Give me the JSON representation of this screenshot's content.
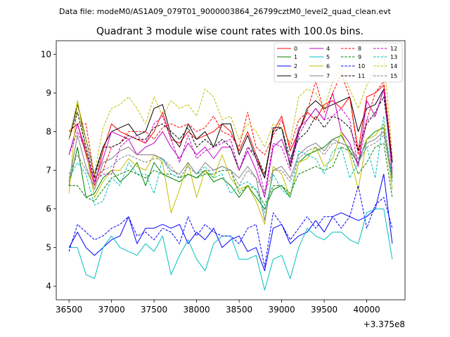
{
  "chart_data": {
    "type": "line",
    "suptitle": "Data file: modeM0/AS1A09_079T01_9000003864_26799cztM0_level2_quad_clean.evt",
    "title": "Quadrant 3 module wise count rates with 100.0s bins.",
    "xlabel": "",
    "ylabel": "",
    "x_offset_label": "+3.375e8",
    "xlim": [
      36350,
      40450
    ],
    "ylim": [
      3.65,
      10.35
    ],
    "x_ticks": [
      36500,
      37000,
      37500,
      38000,
      38500,
      39000,
      39500,
      40000
    ],
    "x_tick_labels": [
      "36500",
      "37000",
      "37500",
      "38000",
      "38500",
      "39000",
      "39500",
      "40000"
    ],
    "y_ticks": [
      4,
      5,
      6,
      7,
      8,
      9,
      10
    ],
    "y_tick_labels": [
      "4",
      "5",
      "6",
      "7",
      "8",
      "9",
      "10"
    ],
    "legend_position": "top-right",
    "x": [
      36500,
      36600,
      36700,
      36800,
      36900,
      37000,
      37100,
      37200,
      37300,
      37400,
      37500,
      37600,
      37700,
      37800,
      37900,
      38000,
      38100,
      38200,
      38300,
      38400,
      38500,
      38600,
      38700,
      38800,
      38900,
      39000,
      39100,
      39200,
      39300,
      39400,
      39500,
      39600,
      39700,
      39800,
      39900,
      40000,
      40100,
      40200,
      40300
    ],
    "series": [
      {
        "name": "0",
        "color": "#ff0000",
        "dash": "solid",
        "values": [
          8.0,
          8.2,
          7.4,
          6.6,
          7.5,
          8.2,
          8.0,
          7.9,
          7.8,
          7.7,
          8.0,
          8.5,
          7.8,
          7.7,
          8.0,
          7.8,
          7.9,
          8.0,
          8.2,
          8.0,
          7.5,
          8.0,
          7.4,
          6.8,
          8.0,
          8.4,
          7.5,
          8.0,
          8.5,
          8.3,
          8.7,
          8.8,
          8.6,
          8.9,
          7.5,
          8.9,
          9.0,
          9.2,
          7.2
        ]
      },
      {
        "name": "1",
        "color": "#008000",
        "dash": "solid",
        "values": [
          6.6,
          7.6,
          6.3,
          6.4,
          6.8,
          7.0,
          6.7,
          6.9,
          7.2,
          6.6,
          7.2,
          6.9,
          6.8,
          6.7,
          6.9,
          6.8,
          7.0,
          6.7,
          6.8,
          6.6,
          6.3,
          6.6,
          6.3,
          6.0,
          6.5,
          6.6,
          6.3,
          7.2,
          7.4,
          7.5,
          7.6,
          7.8,
          7.9,
          7.5,
          7.2,
          7.8,
          8.0,
          8.1,
          6.8
        ]
      },
      {
        "name": "2",
        "color": "#0000ff",
        "dash": "solid",
        "values": [
          5.0,
          5.4,
          5.0,
          4.8,
          5.0,
          5.2,
          5.3,
          5.8,
          5.1,
          5.5,
          5.5,
          5.6,
          5.5,
          5.6,
          5.1,
          5.4,
          5.2,
          5.5,
          5.0,
          5.2,
          5.3,
          4.9,
          5.0,
          4.4,
          5.5,
          5.6,
          5.1,
          5.3,
          5.4,
          5.7,
          5.4,
          5.8,
          5.9,
          5.8,
          5.7,
          5.8,
          6.0,
          6.9,
          5.1
        ]
      },
      {
        "name": "3",
        "color": "#000000",
        "dash": "solid",
        "values": [
          7.8,
          8.7,
          7.8,
          6.9,
          7.6,
          8.0,
          8.1,
          8.2,
          7.9,
          8.0,
          8.6,
          8.7,
          7.9,
          7.6,
          8.2,
          7.8,
          8.0,
          7.6,
          8.2,
          8.2,
          7.4,
          7.9,
          7.3,
          6.8,
          8.1,
          8.1,
          7.1,
          8.0,
          8.6,
          8.8,
          8.6,
          8.7,
          8.8,
          8.9,
          8.0,
          8.6,
          8.7,
          9.1,
          7.2
        ]
      },
      {
        "name": "4",
        "color": "#bf00bf",
        "dash": "solid",
        "values": [
          7.4,
          8.2,
          7.5,
          6.7,
          7.3,
          8.0,
          7.9,
          7.8,
          7.4,
          7.6,
          7.7,
          8.0,
          7.6,
          7.3,
          7.7,
          7.4,
          7.6,
          7.3,
          7.6,
          7.6,
          7.0,
          7.5,
          7.0,
          6.3,
          7.6,
          7.8,
          7.2,
          8.1,
          8.3,
          8.6,
          8.3,
          9.0,
          8.0,
          7.7,
          7.1,
          8.8,
          8.4,
          9.1,
          6.9
        ]
      },
      {
        "name": "5",
        "color": "#00bfbf",
        "dash": "solid",
        "values": [
          5.0,
          5.0,
          4.3,
          4.2,
          5.0,
          5.3,
          5.0,
          4.9,
          4.8,
          5.1,
          4.9,
          5.3,
          4.3,
          4.8,
          5.2,
          4.7,
          4.4,
          5.1,
          5.3,
          5.3,
          4.7,
          4.7,
          4.8,
          3.9,
          4.7,
          4.8,
          4.2,
          5.0,
          5.5,
          5.3,
          5.2,
          5.4,
          5.4,
          5.2,
          5.1,
          5.9,
          6.0,
          6.0,
          4.7
        ]
      },
      {
        "name": "6",
        "color": "#bfbf00",
        "dash": "solid",
        "values": [
          6.4,
          8.8,
          7.5,
          6.3,
          6.7,
          7.0,
          7.0,
          7.3,
          7.1,
          7.0,
          7.4,
          7.2,
          5.9,
          6.5,
          7.2,
          6.3,
          7.0,
          6.8,
          7.4,
          6.8,
          6.5,
          6.6,
          6.2,
          5.6,
          7.1,
          6.9,
          6.3,
          7.2,
          7.3,
          7.6,
          7.1,
          7.3,
          8.0,
          7.4,
          6.5,
          7.8,
          7.9,
          8.2,
          6.5
        ]
      },
      {
        "name": "7",
        "color": "#808080",
        "dash": "solid",
        "values": [
          6.7,
          7.9,
          7.1,
          6.5,
          7.2,
          7.3,
          7.5,
          7.6,
          7.4,
          7.4,
          7.4,
          7.3,
          7.0,
          6.9,
          7.2,
          6.9,
          7.2,
          7.0,
          7.1,
          7.0,
          6.8,
          7.1,
          6.8,
          5.7,
          7.0,
          7.1,
          6.8,
          7.4,
          7.6,
          7.7,
          7.5,
          7.8,
          7.7,
          7.6,
          7.3,
          7.7,
          7.8,
          8.0,
          6.9
        ]
      },
      {
        "name": "8",
        "color": "#ff0000",
        "dash": "dashed",
        "values": [
          8.0,
          8.2,
          8.2,
          6.8,
          7.0,
          7.6,
          7.7,
          8.0,
          8.0,
          8.0,
          7.8,
          8.1,
          8.2,
          8.1,
          8.2,
          8.0,
          8.1,
          8.4,
          8.0,
          7.9,
          7.6,
          8.5,
          7.6,
          7.4,
          7.9,
          8.3,
          7.6,
          8.3,
          8.5,
          9.3,
          8.5,
          9.0,
          9.5,
          8.9,
          7.4,
          8.3,
          9.0,
          9.3,
          7.3
        ]
      },
      {
        "name": "9",
        "color": "#008000",
        "dash": "dashed",
        "values": [
          6.6,
          6.6,
          6.3,
          6.2,
          6.5,
          6.8,
          6.9,
          7.0,
          6.9,
          6.8,
          7.0,
          6.9,
          6.9,
          6.8,
          6.9,
          6.8,
          6.9,
          6.9,
          7.0,
          7.0,
          6.4,
          6.6,
          6.5,
          6.1,
          6.6,
          6.6,
          6.4,
          6.9,
          7.0,
          7.1,
          7.0,
          7.1,
          7.6,
          7.5,
          6.9,
          7.2,
          7.6,
          7.7,
          6.3
        ]
      },
      {
        "name": "10",
        "color": "#0000ff",
        "dash": "dashed",
        "values": [
          4.9,
          5.6,
          5.4,
          5.2,
          5.3,
          5.5,
          5.6,
          5.8,
          5.3,
          5.4,
          5.2,
          5.5,
          5.4,
          5.1,
          5.8,
          5.3,
          5.6,
          5.4,
          5.3,
          5.3,
          5.1,
          5.5,
          5.6,
          4.5,
          5.9,
          5.6,
          5.2,
          5.5,
          5.8,
          5.5,
          5.8,
          5.8,
          5.5,
          5.8,
          6.6,
          5.5,
          6.1,
          6.3,
          5.5
        ]
      },
      {
        "name": "11",
        "color": "#000000",
        "dash": "dashed",
        "values": [
          7.8,
          8.5,
          7.6,
          6.8,
          7.6,
          7.6,
          7.7,
          7.9,
          7.8,
          7.8,
          8.1,
          8.2,
          8.0,
          7.8,
          8.1,
          7.6,
          7.8,
          7.6,
          7.8,
          7.6,
          7.0,
          7.6,
          7.4,
          6.9,
          8.0,
          8.1,
          7.3,
          7.8,
          8.0,
          8.4,
          8.1,
          8.4,
          8.3,
          8.1,
          7.5,
          8.2,
          8.5,
          8.9,
          7.2
        ]
      },
      {
        "name": "12",
        "color": "#bf00bf",
        "dash": "dashed",
        "values": [
          7.4,
          8.0,
          7.5,
          6.7,
          6.9,
          6.9,
          7.6,
          7.8,
          7.9,
          7.7,
          8.2,
          8.4,
          7.8,
          7.2,
          7.9,
          7.3,
          7.5,
          7.6,
          7.7,
          7.8,
          7.0,
          7.6,
          7.3,
          6.4,
          7.7,
          7.6,
          7.0,
          7.9,
          8.3,
          8.6,
          8.3,
          8.4,
          8.6,
          8.3,
          7.1,
          8.3,
          8.4,
          9.1,
          7.0
        ]
      },
      {
        "name": "13",
        "color": "#00bfbf",
        "dash": "dashed",
        "values": [
          6.8,
          7.2,
          6.9,
          6.1,
          6.2,
          6.8,
          6.6,
          7.2,
          6.9,
          6.9,
          6.4,
          7.3,
          6.9,
          6.8,
          7.1,
          6.9,
          7.1,
          6.8,
          6.9,
          6.4,
          6.6,
          6.7,
          6.5,
          5.9,
          6.9,
          6.5,
          6.3,
          7.5,
          7.4,
          7.3,
          6.9,
          7.5,
          7.6,
          6.8,
          7.2,
          7.6,
          6.8,
          8.4,
          6.7
        ]
      },
      {
        "name": "14",
        "color": "#bfbf00",
        "dash": "dashed",
        "values": [
          7.8,
          8.8,
          7.8,
          6.9,
          8.1,
          8.6,
          8.7,
          8.9,
          8.6,
          8.2,
          8.9,
          8.4,
          8.8,
          8.6,
          8.7,
          8.4,
          9.1,
          8.9,
          8.3,
          8.4,
          7.8,
          8.2,
          8.0,
          7.6,
          8.2,
          8.1,
          7.7,
          8.9,
          9.1,
          9.0,
          8.6,
          9.3,
          9.6,
          9.1,
          8.6,
          9.2,
          9.6,
          10.0,
          7.4
        ]
      },
      {
        "name": "15",
        "color": "#808080",
        "dash": "dashed",
        "values": [
          6.9,
          7.4,
          7.0,
          6.6,
          7.0,
          7.1,
          7.3,
          7.4,
          7.3,
          7.2,
          7.3,
          7.3,
          7.1,
          6.8,
          7.1,
          6.9,
          7.0,
          7.0,
          7.1,
          7.0,
          6.6,
          7.0,
          6.8,
          6.4,
          7.0,
          7.0,
          6.7,
          7.3,
          7.5,
          7.6,
          7.4,
          7.7,
          7.7,
          7.6,
          7.2,
          7.6,
          7.7,
          7.9,
          6.7
        ]
      }
    ]
  }
}
